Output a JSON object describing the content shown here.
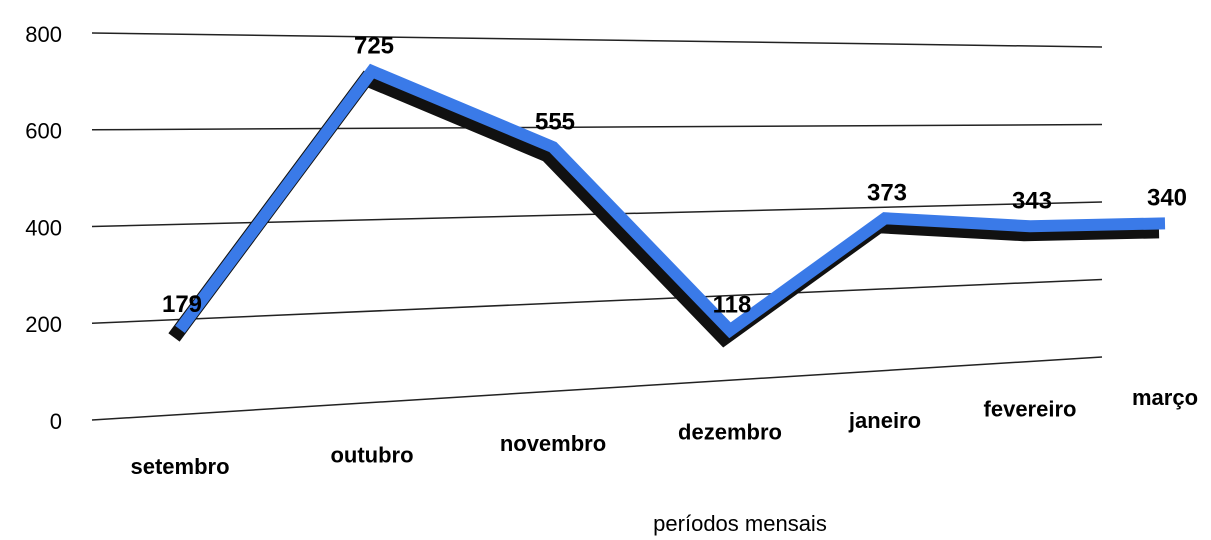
{
  "chart_data": {
    "type": "line",
    "categories": [
      "setembro",
      "outubro",
      "novembro",
      "dezembro",
      "janeiro",
      "fevereiro",
      "março"
    ],
    "series": [
      {
        "name": null,
        "color": "#3a7ae8",
        "values": [
          179,
          725,
          555,
          118,
          373,
          343,
          340
        ]
      }
    ],
    "xlabel": "períodos mensais",
    "ylim": [
      0,
      800
    ],
    "yticks": [
      0,
      200,
      400,
      600,
      800
    ],
    "grid": true
  }
}
